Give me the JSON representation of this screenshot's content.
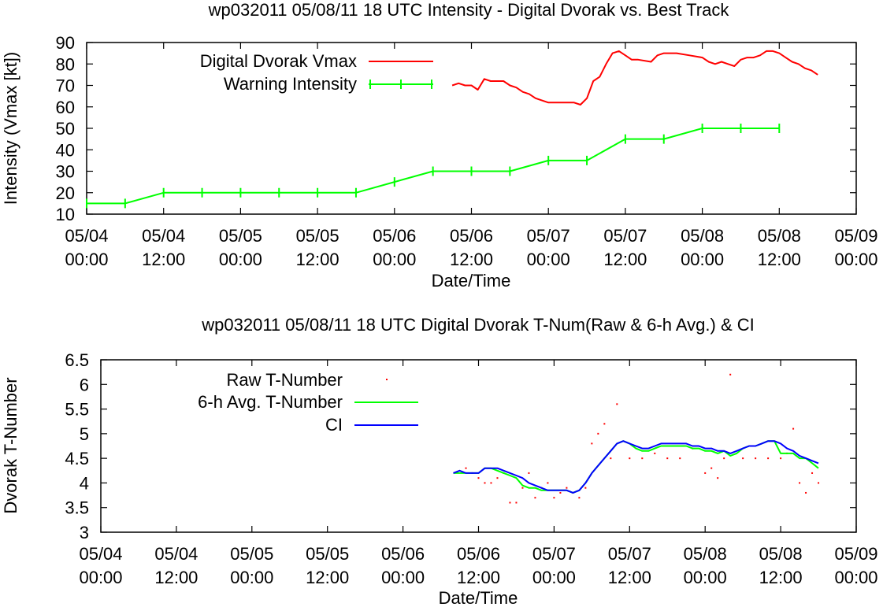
{
  "chart_data": [
    {
      "type": "line",
      "title": "wp032011 05/08/11  18 UTC Intensity - Digital Dvorak vs. Best Track",
      "xlabel": "Date/Time",
      "ylabel": "Intensity (Vmax [kt])",
      "xlim": [
        "05/04 00:00",
        "05/09 00:00"
      ],
      "ylim": [
        10,
        90
      ],
      "yticks": [
        10,
        20,
        30,
        40,
        50,
        60,
        70,
        80,
        90
      ],
      "xticks": [
        {
          "date": "05/04",
          "time": "00:00"
        },
        {
          "date": "05/04",
          "time": "12:00"
        },
        {
          "date": "05/05",
          "time": "00:00"
        },
        {
          "date": "05/05",
          "time": "12:00"
        },
        {
          "date": "05/06",
          "time": "00:00"
        },
        {
          "date": "05/06",
          "time": "12:00"
        },
        {
          "date": "05/07",
          "time": "00:00"
        },
        {
          "date": "05/07",
          "time": "12:00"
        },
        {
          "date": "05/08",
          "time": "00:00"
        },
        {
          "date": "05/08",
          "time": "12:00"
        },
        {
          "date": "05/09",
          "time": "00:00"
        }
      ],
      "legend_position": "top-left",
      "series": [
        {
          "name": "Digital Dvorak Vmax",
          "color": "#ff0000",
          "style": "line",
          "x": [
            "05/06 09:00",
            "05/06 10:00",
            "05/06 11:00",
            "05/06 12:00",
            "05/06 13:00",
            "05/06 14:00",
            "05/06 15:00",
            "05/06 16:00",
            "05/06 17:00",
            "05/06 18:00",
            "05/06 19:00",
            "05/06 20:00",
            "05/06 21:00",
            "05/06 22:00",
            "05/07 00:00",
            "05/07 02:00",
            "05/07 04:00",
            "05/07 05:00",
            "05/07 06:00",
            "05/07 07:00",
            "05/07 08:00",
            "05/07 09:00",
            "05/07 10:00",
            "05/07 11:00",
            "05/07 12:00",
            "05/07 13:00",
            "05/07 14:00",
            "05/07 16:00",
            "05/07 17:00",
            "05/07 18:00",
            "05/07 20:00",
            "05/07 22:00",
            "05/08 00:00",
            "05/08 01:00",
            "05/08 02:00",
            "05/08 03:00",
            "05/08 04:00",
            "05/08 05:00",
            "05/08 06:00",
            "05/08 07:00",
            "05/08 08:00",
            "05/08 09:00",
            "05/08 10:00",
            "05/08 11:00",
            "05/08 12:00",
            "05/08 13:00",
            "05/08 14:00",
            "05/08 15:00",
            "05/08 16:00",
            "05/08 17:00",
            "05/08 18:00"
          ],
          "y": [
            70,
            71,
            70,
            70,
            68,
            73,
            72,
            72,
            72,
            70,
            69,
            67,
            66,
            64,
            62,
            62,
            62,
            61,
            64,
            72,
            74,
            80,
            85,
            86,
            84,
            82,
            82,
            81,
            84,
            85,
            85,
            84,
            83,
            81,
            80,
            81,
            80,
            79,
            82,
            83,
            83,
            84,
            86,
            86,
            85,
            83,
            81,
            80,
            78,
            77,
            75
          ]
        },
        {
          "name": "Warning Intensity",
          "color": "#00ff00",
          "style": "linespoints",
          "x": [
            "05/04 00:00",
            "05/04 06:00",
            "05/04 12:00",
            "05/04 18:00",
            "05/05 00:00",
            "05/05 06:00",
            "05/05 12:00",
            "05/05 18:00",
            "05/06 00:00",
            "05/06 06:00",
            "05/06 12:00",
            "05/06 18:00",
            "05/07 00:00",
            "05/07 06:00",
            "05/07 12:00",
            "05/07 18:00",
            "05/08 00:00",
            "05/08 06:00",
            "05/08 12:00"
          ],
          "y": [
            15,
            15,
            20,
            20,
            20,
            20,
            20,
            20,
            25,
            30,
            30,
            30,
            35,
            35,
            45,
            45,
            50,
            50,
            50
          ]
        }
      ]
    },
    {
      "type": "line",
      "title": "wp032011 05/08/11  18 UTC Digital Dvorak T-Num(Raw & 6-h Avg.) & CI",
      "xlabel": "Date/Time",
      "ylabel": "Dvorak T-Number",
      "xlim": [
        "05/04 00:00",
        "05/09 00:00"
      ],
      "ylim": [
        3,
        6.5
      ],
      "yticks": [
        "3",
        "3.5",
        "4",
        "4.5",
        "5",
        "5.5",
        "6",
        "6.5"
      ],
      "xticks": [
        {
          "date": "05/04",
          "time": "00:00"
        },
        {
          "date": "05/04",
          "time": "12:00"
        },
        {
          "date": "05/05",
          "time": "00:00"
        },
        {
          "date": "05/05",
          "time": "12:00"
        },
        {
          "date": "05/06",
          "time": "00:00"
        },
        {
          "date": "05/06",
          "time": "12:00"
        },
        {
          "date": "05/07",
          "time": "00:00"
        },
        {
          "date": "05/07",
          "time": "12:00"
        },
        {
          "date": "05/08",
          "time": "00:00"
        },
        {
          "date": "05/08",
          "time": "12:00"
        },
        {
          "date": "05/09",
          "time": "00:00"
        }
      ],
      "legend_position": "top-left",
      "series": [
        {
          "name": "Raw T-Number",
          "color": "#ff0000",
          "style": "dots",
          "x": [
            "05/06 10:00",
            "05/06 11:00",
            "05/06 12:00",
            "05/06 13:00",
            "05/06 14:00",
            "05/06 15:00",
            "05/06 16:00",
            "05/06 17:00",
            "05/06 18:00",
            "05/06 19:00",
            "05/06 20:00",
            "05/06 21:00",
            "05/06 22:00",
            "05/06 23:00",
            "05/07 00:00",
            "05/07 01:00",
            "05/07 02:00",
            "05/07 03:00",
            "05/07 04:00",
            "05/07 05:00",
            "05/07 06:00",
            "05/07 07:00",
            "05/07 08:00",
            "05/07 09:00",
            "05/07 10:00",
            "05/07 12:00",
            "05/07 14:00",
            "05/07 16:00",
            "05/07 18:00",
            "05/07 20:00",
            "05/07 22:00",
            "05/08 00:00",
            "05/08 01:00",
            "05/08 02:00",
            "05/08 03:00",
            "05/08 04:00",
            "05/08 06:00",
            "05/08 08:00",
            "05/08 10:00",
            "05/08 12:00",
            "05/08 13:00",
            "05/08 14:00",
            "05/08 15:00",
            "05/08 16:00",
            "05/08 17:00",
            "05/08 18:00"
          ],
          "y": [
            4.3,
            4.2,
            4.1,
            4.0,
            4.0,
            4.1,
            4.2,
            3.6,
            3.6,
            3.9,
            4.2,
            3.7,
            3.9,
            4.0,
            3.7,
            3.8,
            3.9,
            3.8,
            3.7,
            3.9,
            4.8,
            5.0,
            5.2,
            4.5,
            5.6,
            4.5,
            4.5,
            4.6,
            4.5,
            4.5,
            4.7,
            4.2,
            4.3,
            4.1,
            4.5,
            6.2,
            4.5,
            4.5,
            4.5,
            4.5,
            4.6,
            5.1,
            4.0,
            3.8,
            4.2,
            4.0
          ]
        },
        {
          "name": "6-h Avg. T-Number",
          "color": "#00ff00",
          "style": "line",
          "x": [
            "05/06 08:00",
            "05/06 09:00",
            "05/06 10:00",
            "05/06 11:00",
            "05/06 12:00",
            "05/06 13:00",
            "05/06 14:00",
            "05/06 15:00",
            "05/06 16:00",
            "05/06 17:00",
            "05/06 18:00",
            "05/06 19:00",
            "05/06 20:00",
            "05/06 21:00",
            "05/06 22:00",
            "05/06 23:00",
            "05/07 00:00",
            "05/07 01:00",
            "05/07 02:00",
            "05/07 03:00",
            "05/07 04:00",
            "05/07 05:00",
            "05/07 06:00",
            "05/07 07:00",
            "05/07 08:00",
            "05/07 09:00",
            "05/07 10:00",
            "05/07 11:00",
            "05/07 12:00",
            "05/07 13:00",
            "05/07 14:00",
            "05/07 15:00",
            "05/07 16:00",
            "05/07 17:00",
            "05/07 18:00",
            "05/07 19:00",
            "05/07 20:00",
            "05/07 21:00",
            "05/07 22:00",
            "05/07 23:00",
            "05/08 00:00",
            "05/08 01:00",
            "05/08 02:00",
            "05/08 03:00",
            "05/08 04:00",
            "05/08 05:00",
            "05/08 06:00",
            "05/08 07:00",
            "05/08 08:00",
            "05/08 09:00",
            "05/08 10:00",
            "05/08 11:00",
            "05/08 12:00",
            "05/08 13:00",
            "05/08 14:00",
            "05/08 15:00",
            "05/08 16:00",
            "05/08 17:00",
            "05/08 18:00"
          ],
          "y": [
            4.2,
            4.2,
            4.2,
            4.2,
            4.2,
            4.3,
            4.3,
            4.25,
            4.2,
            4.15,
            4.1,
            3.95,
            3.9,
            3.9,
            3.85,
            3.85,
            3.85,
            3.85,
            3.85,
            3.8,
            3.85,
            4.0,
            4.2,
            4.35,
            4.5,
            4.65,
            4.8,
            4.85,
            4.8,
            4.7,
            4.65,
            4.65,
            4.7,
            4.75,
            4.75,
            4.75,
            4.75,
            4.75,
            4.7,
            4.7,
            4.65,
            4.65,
            4.6,
            4.65,
            4.55,
            4.6,
            4.7,
            4.75,
            4.75,
            4.8,
            4.85,
            4.85,
            4.6,
            4.6,
            4.6,
            4.5,
            4.5,
            4.4,
            4.3
          ]
        },
        {
          "name": "CI",
          "color": "#0000ff",
          "style": "line",
          "x": [
            "05/06 08:00",
            "05/06 09:00",
            "05/06 10:00",
            "05/06 11:00",
            "05/06 12:00",
            "05/06 13:00",
            "05/06 14:00",
            "05/06 15:00",
            "05/06 16:00",
            "05/06 17:00",
            "05/06 18:00",
            "05/06 19:00",
            "05/06 20:00",
            "05/06 21:00",
            "05/06 22:00",
            "05/06 23:00",
            "05/07 00:00",
            "05/07 01:00",
            "05/07 02:00",
            "05/07 03:00",
            "05/07 04:00",
            "05/07 05:00",
            "05/07 06:00",
            "05/07 07:00",
            "05/07 08:00",
            "05/07 09:00",
            "05/07 10:00",
            "05/07 11:00",
            "05/07 12:00",
            "05/07 13:00",
            "05/07 14:00",
            "05/07 15:00",
            "05/07 16:00",
            "05/07 17:00",
            "05/07 18:00",
            "05/07 19:00",
            "05/07 20:00",
            "05/07 21:00",
            "05/07 22:00",
            "05/07 23:00",
            "05/08 00:00",
            "05/08 01:00",
            "05/08 02:00",
            "05/08 03:00",
            "05/08 04:00",
            "05/08 05:00",
            "05/08 06:00",
            "05/08 07:00",
            "05/08 08:00",
            "05/08 09:00",
            "05/08 10:00",
            "05/08 11:00",
            "05/08 12:00",
            "05/08 13:00",
            "05/08 14:00",
            "05/08 15:00",
            "05/08 16:00",
            "05/08 17:00",
            "05/08 18:00"
          ],
          "y": [
            4.2,
            4.25,
            4.2,
            4.2,
            4.2,
            4.3,
            4.3,
            4.3,
            4.25,
            4.2,
            4.15,
            4.1,
            4.0,
            3.95,
            3.9,
            3.85,
            3.85,
            3.85,
            3.85,
            3.8,
            3.85,
            4.0,
            4.2,
            4.35,
            4.5,
            4.65,
            4.8,
            4.85,
            4.8,
            4.75,
            4.7,
            4.7,
            4.75,
            4.8,
            4.8,
            4.8,
            4.8,
            4.8,
            4.75,
            4.75,
            4.7,
            4.7,
            4.65,
            4.65,
            4.6,
            4.65,
            4.7,
            4.75,
            4.75,
            4.8,
            4.85,
            4.85,
            4.8,
            4.7,
            4.65,
            4.55,
            4.5,
            4.45,
            4.4
          ]
        }
      ]
    }
  ]
}
